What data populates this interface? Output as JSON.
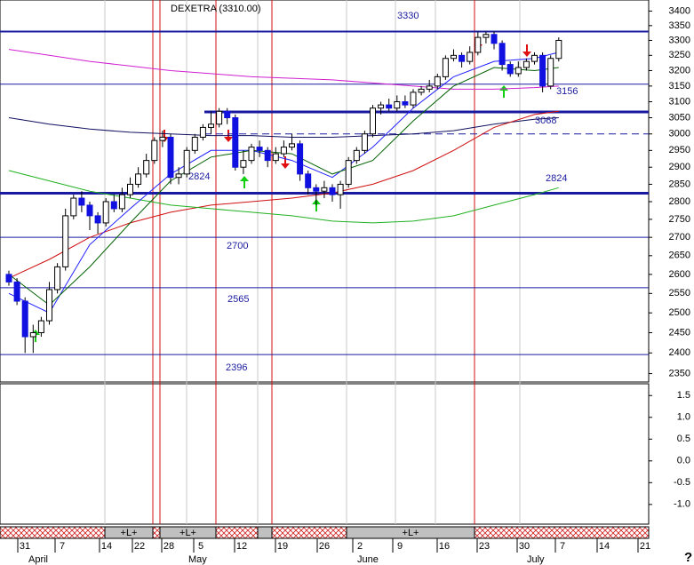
{
  "chart_data": {
    "type": "candlestick",
    "title": "DEXETRA (3310.00)",
    "log_scale": true,
    "ylim": [
      2330,
      3420
    ],
    "yticks": [
      3400,
      3350,
      3300,
      3250,
      3200,
      3150,
      3100,
      3050,
      3000,
      2950,
      2900,
      2850,
      2800,
      2750,
      2700,
      2650,
      2600,
      2550,
      2500,
      2450,
      2400,
      2350
    ],
    "up_color": "#ffffff",
    "down_color": "#1010e0",
    "open": [
      2600,
      2580,
      2530,
      2440,
      2450,
      2480,
      2560,
      2620,
      2760,
      2810,
      2790,
      2760,
      2740,
      2800,
      2780,
      2820,
      2850,
      2880,
      2920,
      2980,
      2990,
      2870,
      2880,
      2950,
      2990,
      3020,
      3030,
      3070,
      3050,
      2900,
      2920,
      2960,
      2950,
      2920,
      2940,
      2960,
      2970,
      2880,
      2840,
      2830,
      2840,
      2820,
      2850,
      2920,
      2950,
      3000,
      3080,
      3090,
      3080,
      3100,
      3090,
      3130,
      3140,
      3150,
      3180,
      3240,
      3250,
      3230,
      3260,
      3310,
      3320,
      3290,
      3220,
      3190,
      3210,
      3230,
      3250,
      3150,
      3240
    ],
    "high": [
      2610,
      2590,
      2540,
      2470,
      2490,
      2580,
      2630,
      2780,
      2820,
      2830,
      2800,
      2770,
      2810,
      2820,
      2840,
      2870,
      2900,
      2940,
      2990,
      3010,
      3000,
      2900,
      2960,
      3000,
      3030,
      3070,
      3080,
      3080,
      3060,
      2950,
      2970,
      2980,
      2960,
      2960,
      2980,
      3000,
      2980,
      2890,
      2850,
      2860,
      2850,
      2860,
      2930,
      2960,
      3010,
      3090,
      3100,
      3110,
      3120,
      3120,
      3140,
      3150,
      3170,
      3190,
      3250,
      3270,
      3260,
      3280,
      3330,
      3330,
      3330,
      3300,
      3230,
      3230,
      3240,
      3260,
      3260,
      3250,
      3310
    ],
    "low": [
      2570,
      2520,
      2400,
      2400,
      2440,
      2470,
      2550,
      2610,
      2750,
      2770,
      2720,
      2710,
      2730,
      2770,
      2770,
      2810,
      2840,
      2870,
      2910,
      2960,
      2850,
      2850,
      2870,
      2940,
      2980,
      3000,
      3020,
      3030,
      2890,
      2880,
      2910,
      2930,
      2900,
      2910,
      2930,
      2950,
      2860,
      2820,
      2790,
      2810,
      2800,
      2780,
      2840,
      2910,
      2940,
      2990,
      3060,
      3070,
      3070,
      3080,
      3080,
      3120,
      3130,
      3140,
      3170,
      3230,
      3210,
      3220,
      3250,
      3290,
      3270,
      3200,
      3180,
      3180,
      3200,
      3220,
      3130,
      3140,
      3230
    ],
    "close": [
      2580,
      2530,
      2440,
      2450,
      2480,
      2560,
      2620,
      2760,
      2810,
      2790,
      2760,
      2740,
      2800,
      2780,
      2820,
      2850,
      2880,
      2920,
      2980,
      2990,
      2870,
      2880,
      2950,
      2990,
      3020,
      3030,
      3070,
      3050,
      2900,
      2920,
      2960,
      2950,
      2920,
      2940,
      2960,
      2970,
      2880,
      2840,
      2830,
      2840,
      2820,
      2850,
      2920,
      2950,
      3000,
      3080,
      3090,
      3080,
      3100,
      3090,
      3130,
      3140,
      3150,
      3180,
      3240,
      3250,
      3230,
      3260,
      3310,
      3320,
      3290,
      3220,
      3190,
      3210,
      3230,
      3250,
      3150,
      3240,
      3300
    ],
    "ma_x": [
      0,
      5,
      10,
      15,
      20,
      25,
      30,
      35,
      40,
      45,
      50,
      55,
      60,
      65,
      68
    ],
    "series": [
      {
        "name": "MA1",
        "color": "#d020d0",
        "values": [
          3270,
          3250,
          3230,
          3215,
          3200,
          3190,
          3180,
          3175,
          3170,
          3160,
          3150,
          3140,
          3140,
          3145,
          3150
        ]
      },
      {
        "name": "MA2",
        "color": "#101060",
        "values": [
          3050,
          3030,
          3015,
          3005,
          3000,
          2995,
          2995,
          2990,
          2990,
          2995,
          3000,
          3010,
          3030,
          3045,
          3050
        ]
      },
      {
        "name": "MA3",
        "color": "#d01010",
        "values": [
          2590,
          2640,
          2700,
          2740,
          2770,
          2790,
          2800,
          2810,
          2825,
          2850,
          2890,
          2950,
          3020,
          3060,
          3070
        ]
      },
      {
        "name": "MA4",
        "color": "#20b020",
        "values": [
          2890,
          2860,
          2830,
          2810,
          2790,
          2780,
          2770,
          2760,
          2745,
          2740,
          2745,
          2760,
          2790,
          2820,
          2840
        ]
      },
      {
        "name": "MA5",
        "color": "#2020ff",
        "values": [
          2550,
          2500,
          2680,
          2780,
          2880,
          2950,
          2950,
          2920,
          2870,
          2960,
          3080,
          3180,
          3230,
          3240,
          3260
        ]
      },
      {
        "name": "MA6",
        "color": "#006000",
        "values": [
          2600,
          2520,
          2620,
          2740,
          2860,
          2930,
          2950,
          2940,
          2880,
          2920,
          3040,
          3150,
          3210,
          3200,
          3210
        ]
      }
    ],
    "levels": [
      3330,
      3156,
      3068,
      3000,
      2824,
      2700,
      2565,
      2396
    ],
    "y2lim": [
      -1.35,
      1.75
    ],
    "y2ticks": [
      1.5,
      1.0,
      0.5,
      0.0,
      -0.5,
      -1.0
    ],
    "y2tick_labels": [
      "1.5",
      "1.0",
      "0.5",
      "0.0",
      "-0.5",
      "-1.0"
    ],
    "band_labels": [
      "+L+",
      "+L+",
      "+L+"
    ],
    "day_labels": [
      "31",
      "7",
      "14",
      "22",
      "28",
      "5",
      "12",
      "19",
      "26",
      "2",
      "9",
      "16",
      "23",
      "30",
      "7",
      "14",
      "21"
    ],
    "month_labels": [
      "April",
      "May",
      "June",
      "July"
    ],
    "help": "?"
  }
}
